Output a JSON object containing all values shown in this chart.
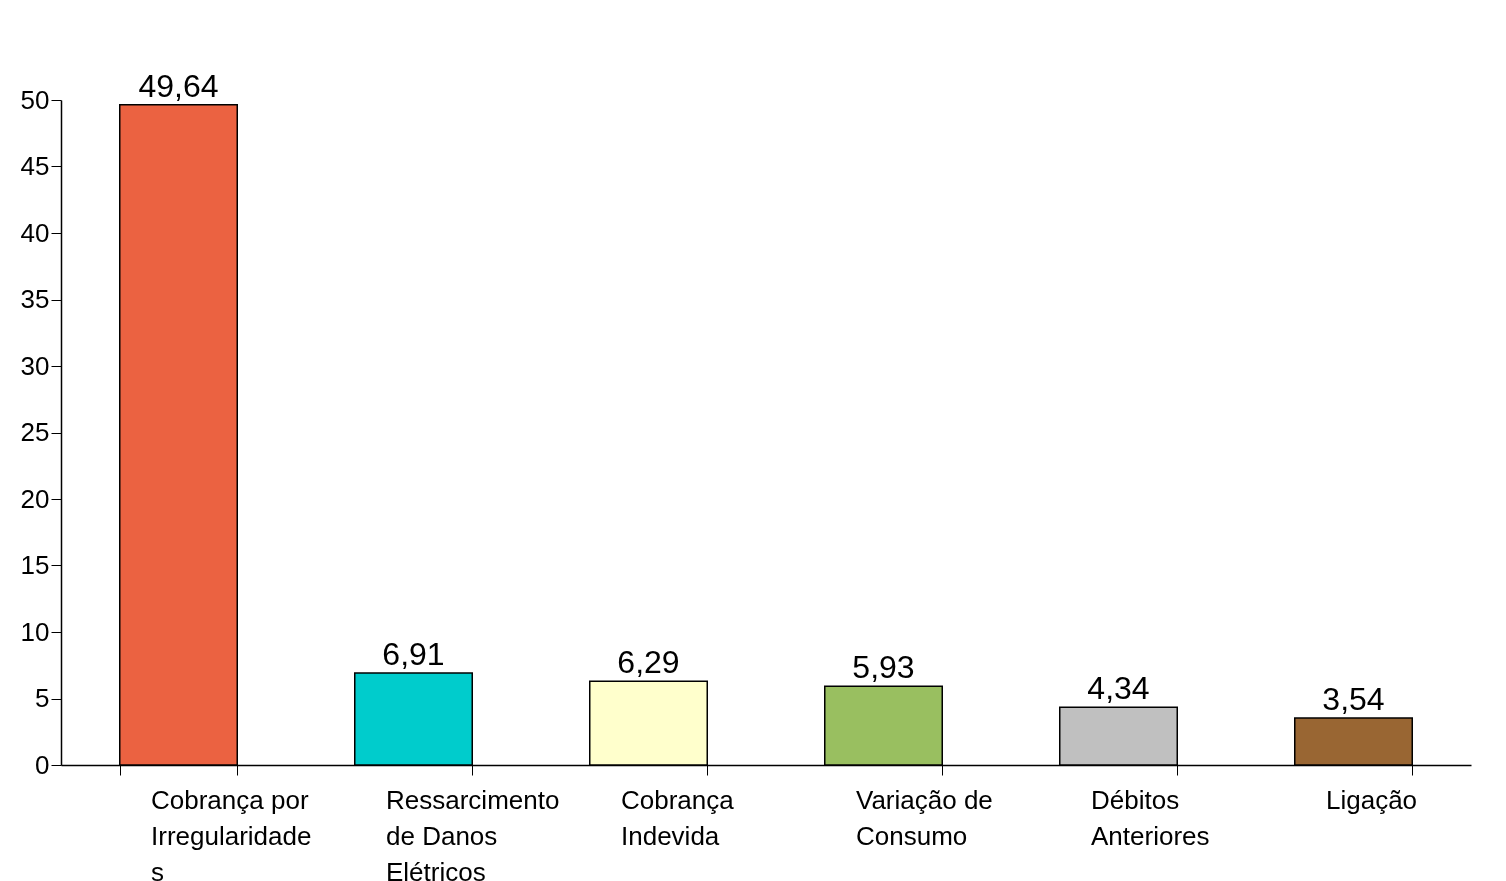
{
  "chart_data": {
    "type": "bar",
    "categories": [
      "Cobrança por Irregularidades",
      "Ressarcimento de Danos Elétricos",
      "Cobrança Indevida",
      "Variação de Consumo",
      "Débitos Anteriores",
      "Ligação"
    ],
    "values": [
      49.64,
      6.91,
      6.29,
      5.93,
      4.34,
      3.54
    ],
    "colors": [
      "#eb6241",
      "#00cccc",
      "#ffffcc",
      "#99bf60",
      "#c0c0c0",
      "#996633"
    ],
    "ylim": [
      0,
      50
    ],
    "yticks": [
      0,
      5,
      10,
      15,
      20,
      25,
      30,
      35,
      40,
      45,
      50
    ],
    "grid": false,
    "value_labels": [
      "49,64",
      "6,91",
      "6,29",
      "5,93",
      "4,34",
      "3,54"
    ]
  }
}
